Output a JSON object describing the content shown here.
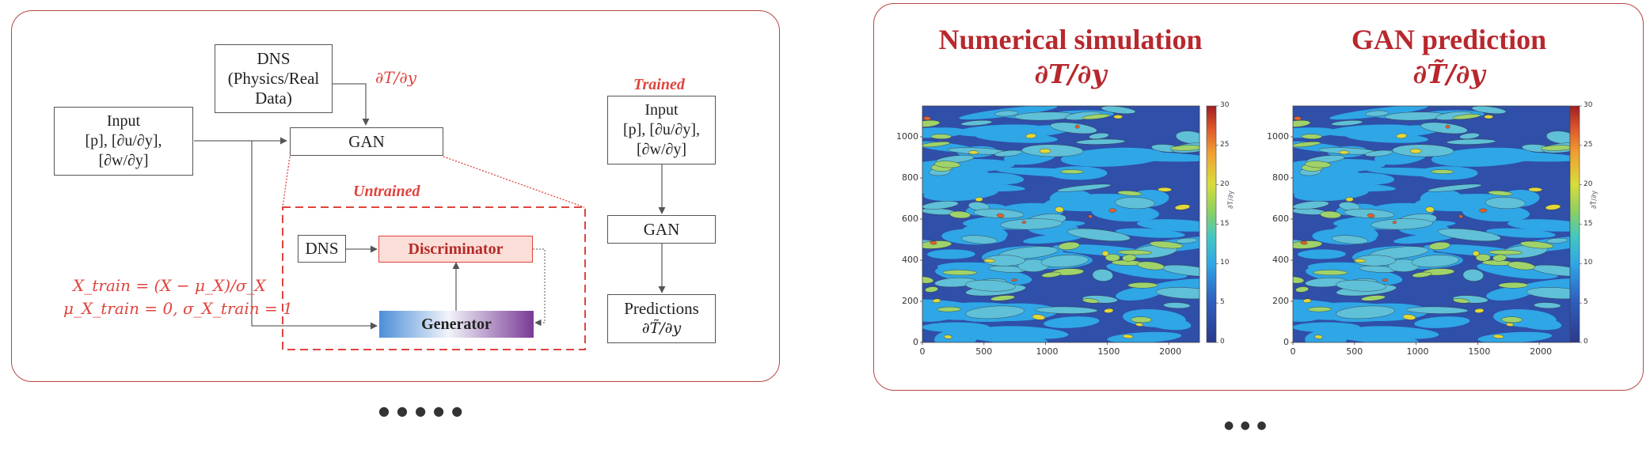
{
  "diagram": {
    "dns_top": [
      "DNS",
      "(Physics/Real",
      "Data)"
    ],
    "grad_T_label": "∂T/∂y",
    "input_left": [
      "Input",
      "[p], [∂u/∂y],",
      "[∂w/∂y]"
    ],
    "gan_left": "GAN",
    "untrained_label": "Untrained",
    "dns_small": "DNS",
    "discriminator": "Discriminator",
    "generator": "Generator",
    "norm_eq1": "X_train = (X − μ_X)/σ_X",
    "norm_eq2": "μ_X_train = 0, σ_X_train = 1",
    "trained_label": "Trained",
    "input_right": [
      "Input",
      "[p], [∂u/∂y],",
      "[∂w/∂y]"
    ],
    "gan_right": "GAN",
    "predictions": [
      "Predictions",
      "∂T̃/∂y"
    ],
    "colors": {
      "panel_border": "#b84545",
      "accent_red": "#e0443e",
      "discriminator_fill": "#fbded7",
      "generator_left": "#4c8fd8",
      "generator_right": "#7a3a96"
    }
  },
  "plots": [
    {
      "title": "Numerical simulation",
      "symbol": "∂T/∂y",
      "colorbar_label": "∂T/∂y"
    },
    {
      "title": "GAN prediction",
      "symbol": "∂T̃/∂y",
      "colorbar_label": "∂T̃/∂y"
    }
  ],
  "chart_data": [
    {
      "type": "heatmap",
      "title": "Numerical simulation",
      "xlim": [
        0,
        2250
      ],
      "ylim": [
        0,
        1150
      ],
      "xticks": [
        0,
        500,
        1000,
        1500,
        2000
      ],
      "yticks": [
        0,
        200,
        400,
        600,
        800,
        1000
      ],
      "colorbar": {
        "range": [
          0,
          30
        ],
        "ticks": [
          0,
          5,
          10,
          15,
          20,
          25,
          30
        ],
        "colormap": "jet"
      }
    },
    {
      "type": "heatmap",
      "title": "GAN prediction",
      "xlim": [
        0,
        2250
      ],
      "ylim": [
        0,
        1150
      ],
      "xticks": [
        0,
        500,
        1000,
        1500,
        2000
      ],
      "yticks": [
        0,
        200,
        400,
        600,
        800,
        1000
      ],
      "colorbar": {
        "range": [
          0,
          30
        ],
        "ticks": [
          0,
          5,
          10,
          15,
          20,
          25,
          30
        ],
        "colormap": "jet"
      }
    }
  ],
  "xtick_labels": [
    "0",
    "500",
    "1000",
    "1500",
    "2000"
  ],
  "ytick_labels": [
    "0",
    "200",
    "400",
    "600",
    "800",
    "1000"
  ],
  "cbar_tick_labels": [
    "0",
    "5",
    "10",
    "15",
    "20",
    "25",
    "30"
  ],
  "captions": {
    "left": "● ● ● ● ●",
    "right": "● ● ●"
  }
}
